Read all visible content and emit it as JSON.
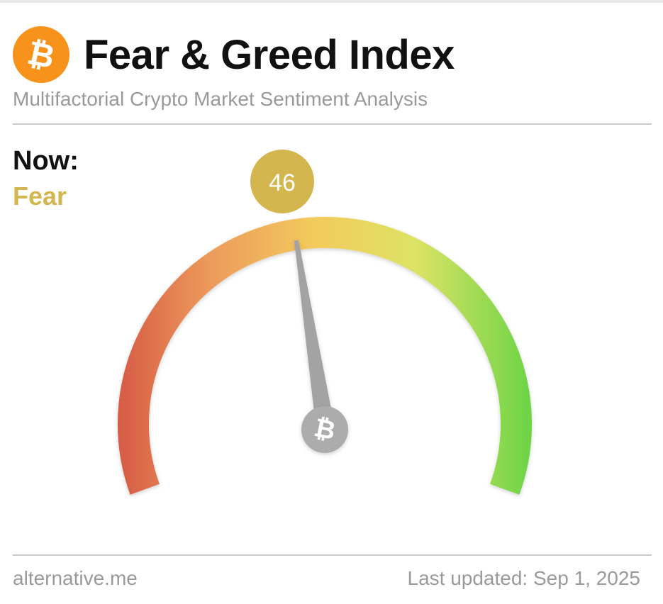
{
  "header": {
    "logo_symbol": "₿",
    "logo_icon": "bitcoin-icon",
    "title": "Fear & Greed Index",
    "subtitle": "Multifactorial Crypto Market Sentiment Analysis"
  },
  "now": {
    "label": "Now:",
    "classification": "Fear",
    "value": "46",
    "value_number": 46,
    "scale_min": 0,
    "scale_max": 100,
    "color": "#d4b64e"
  },
  "gauge": {
    "hub_symbol": "₿",
    "hub_icon": "bitcoin-icon",
    "gradient_colors": [
      "#d65a45",
      "#ec9a5b",
      "#f3cb5c",
      "#dde365",
      "#6cd446"
    ],
    "needle_color": "#a3a3a3",
    "hub_color": "#acacac"
  },
  "footer": {
    "source": "alternative.me",
    "last_updated": "Last updated: Sep 1, 2025"
  }
}
